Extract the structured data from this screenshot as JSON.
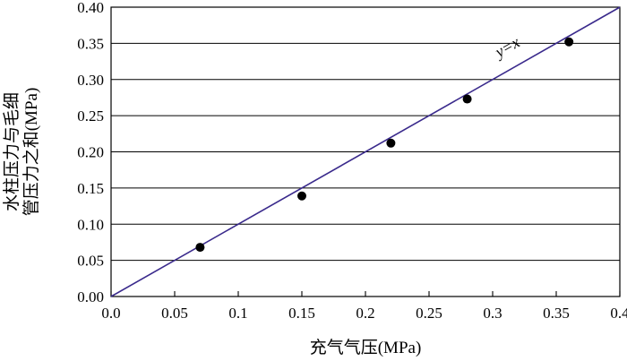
{
  "chart_data": {
    "type": "scatter",
    "title": "",
    "xlabel": "充气气压(MPa)",
    "ylabel_lines": [
      "水柱压力与毛细",
      "管压力之和(MPa)"
    ],
    "xlim": [
      0,
      0.4
    ],
    "ylim": [
      0,
      0.4
    ],
    "x_ticks": [
      {
        "v": 0.0,
        "label": "0.0"
      },
      {
        "v": 0.05,
        "label": "0.05"
      },
      {
        "v": 0.1,
        "label": "0.1"
      },
      {
        "v": 0.15,
        "label": "0.15"
      },
      {
        "v": 0.2,
        "label": "0.2"
      },
      {
        "v": 0.25,
        "label": "0.25"
      },
      {
        "v": 0.3,
        "label": "0.3"
      },
      {
        "v": 0.35,
        "label": "0.35"
      },
      {
        "v": 0.4,
        "label": "0.4"
      }
    ],
    "y_ticks": [
      {
        "v": 0.0,
        "label": "0.00"
      },
      {
        "v": 0.05,
        "label": "0.05"
      },
      {
        "v": 0.1,
        "label": "0.10"
      },
      {
        "v": 0.15,
        "label": "0.15"
      },
      {
        "v": 0.2,
        "label": "0.20"
      },
      {
        "v": 0.25,
        "label": "0.25"
      },
      {
        "v": 0.3,
        "label": "0.30"
      },
      {
        "v": 0.35,
        "label": "0.35"
      },
      {
        "v": 0.4,
        "label": "0.40"
      }
    ],
    "grid": "horizontal",
    "series": [
      {
        "points": [
          {
            "x": 0.07,
            "y": 0.068
          },
          {
            "x": 0.15,
            "y": 0.139
          },
          {
            "x": 0.22,
            "y": 0.212
          },
          {
            "x": 0.28,
            "y": 0.273
          },
          {
            "x": 0.36,
            "y": 0.352
          }
        ],
        "color": "#000000"
      }
    ],
    "reference_line": {
      "label": "y=x",
      "from": [
        0,
        0
      ],
      "to": [
        0.4,
        0.4
      ],
      "color": "#3a2a8c"
    }
  }
}
